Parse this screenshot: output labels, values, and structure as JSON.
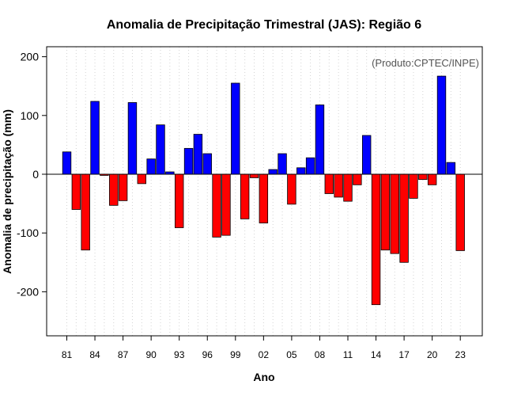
{
  "chart_data": {
    "type": "bar",
    "title": "Anomalia de Precipitação Trimestral (JAS): Região 6",
    "xlabel": "Ano",
    "ylabel": "Anomalia de precipitação (mm)",
    "annotation": "(Produto:CPTEC/INPE)",
    "ylim": [
      -275,
      217
    ],
    "yticks": [
      -200,
      -100,
      0,
      100,
      200
    ],
    "grid": "vertical dotted",
    "categories": [
      "1981",
      "1982",
      "1983",
      "1984",
      "1985",
      "1986",
      "1987",
      "1988",
      "1989",
      "1990",
      "1991",
      "1992",
      "1993",
      "1994",
      "1995",
      "1996",
      "1997",
      "1998",
      "1999",
      "2000",
      "2001",
      "2002",
      "2003",
      "2004",
      "2005",
      "2006",
      "2007",
      "2008",
      "2009",
      "2010",
      "2011",
      "2012",
      "2013",
      "2014",
      "2015",
      "2016",
      "2017",
      "2018",
      "2019",
      "2020",
      "2021",
      "2022",
      "2023"
    ],
    "values": [
      38,
      -60,
      -129,
      124,
      -2,
      -53,
      -45,
      122,
      -16,
      26,
      84,
      4,
      -91,
      44,
      68,
      35,
      -107,
      -104,
      155,
      -76,
      -6,
      -83,
      8,
      35,
      -51,
      11,
      28,
      118,
      -33,
      -39,
      -46,
      -18,
      66,
      -222,
      -129,
      -135,
      -150,
      -41,
      -9,
      -18,
      167,
      20,
      -130
    ],
    "xtick_labels": [
      {
        "index": 0,
        "label": "81"
      },
      {
        "index": 3,
        "label": "84"
      },
      {
        "index": 6,
        "label": "87"
      },
      {
        "index": 9,
        "label": "90"
      },
      {
        "index": 12,
        "label": "93"
      },
      {
        "index": 15,
        "label": "96"
      },
      {
        "index": 18,
        "label": "99"
      },
      {
        "index": 21,
        "label": "02"
      },
      {
        "index": 24,
        "label": "05"
      },
      {
        "index": 27,
        "label": "08"
      },
      {
        "index": 30,
        "label": "11"
      },
      {
        "index": 33,
        "label": "14"
      },
      {
        "index": 36,
        "label": "17"
      },
      {
        "index": 39,
        "label": "20"
      },
      {
        "index": 42,
        "label": "23"
      }
    ],
    "colors": {
      "positive": "#0000ff",
      "negative": "#ff0000",
      "grid": "#d3d3d3",
      "zero_line": "#000000"
    }
  }
}
